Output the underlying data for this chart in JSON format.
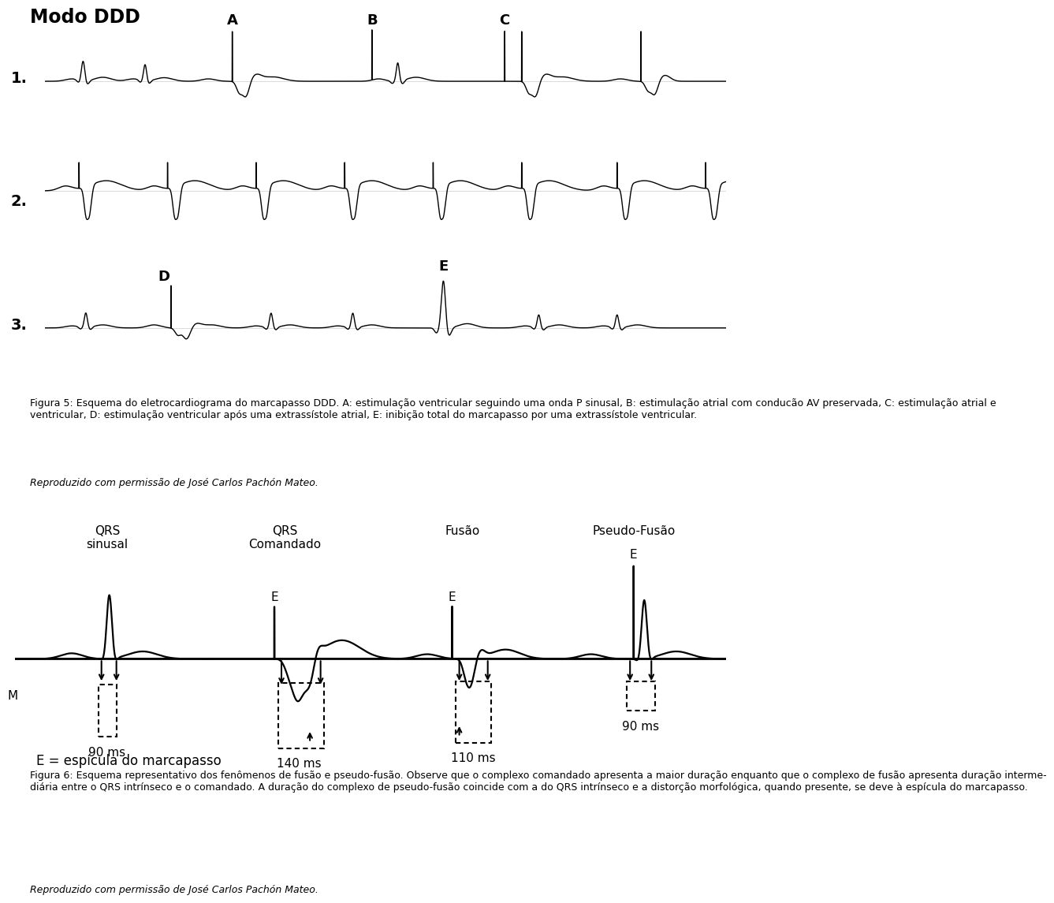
{
  "title_modo": "Modo DDD",
  "fig_caption5_main": "Figura 5: Esquema do eletrocardiograma do marcapasso DDD. A: estimulação ventricular seguindo uma onda P sinusal, B: estimulação atrial com conducão AV preservada, C: estimulação atrial e ventricular, D: estimulação ventricular após uma extrassístole atrial, E: inibição total do marcapasso por uma extrassístole ventricular. ",
  "fig_caption5_italic": "Reproduzido com permissão de José Carlos Pachón Mateo.",
  "fig_caption6_main": "Figura 6: Esquema representativo dos fenômenos de fusão e pseudo-fusão. Observe que o complexo comandado apresenta a maior duração enquanto que o complexo de fusão apresenta duração interme-\ndiária entre o QRS intrínseco e o comandado. A duração do complexo de pseudo-fusão coincide com a do QRS intrínseco e a distorção morfológica, quando presente, se deve à espícula do marcapasso.",
  "fig_caption6_italic": "Reproduzido com permissão de José Carlos Pachón Mateo.",
  "E_label": "E = espícula do marcapasso",
  "ms_labels": [
    "90 ms",
    "140 ms",
    "110 ms",
    "90 ms"
  ],
  "section_labels": [
    "QRS\nsinusal",
    "QRS\nComandado",
    "Fusão",
    "Pseudo-Fusão"
  ],
  "bg_color": "#ffffff"
}
